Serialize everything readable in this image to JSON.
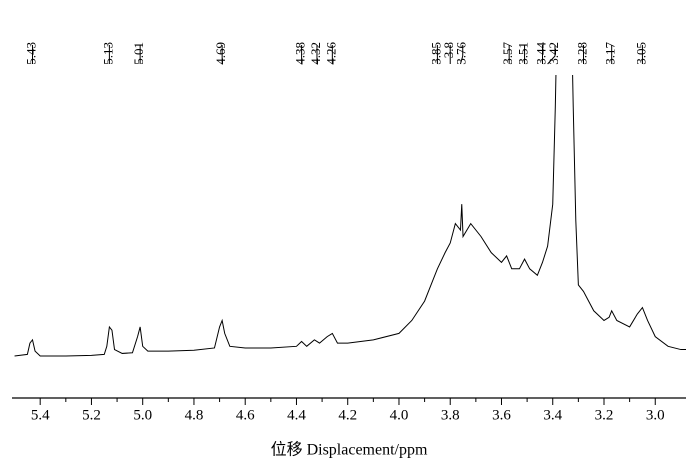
{
  "chart_data": {
    "type": "line",
    "xlabel": "位移 Displacement/ppm",
    "peaks": [
      5.43,
      5.13,
      5.01,
      4.69,
      4.38,
      4.32,
      4.26,
      3.85,
      3.8,
      3.76,
      3.57,
      3.51,
      3.44,
      3.42,
      3.28,
      3.17,
      3.05
    ],
    "xlim": [
      5.51,
      2.88
    ],
    "ylim": [
      0,
      100
    ],
    "xticks": [
      5.4,
      5.2,
      {
        "value": 5.0,
        "label": "5.0"
      },
      4.8,
      4.6,
      4.4,
      4.2,
      {
        "value": 4.0,
        "label": "4.0"
      },
      3.8,
      3.6,
      3.4,
      3.2,
      {
        "value": 3.0,
        "label": "3.0"
      }
    ],
    "color": "#000000",
    "series": [
      {
        "x": [
          5.5,
          5.45,
          5.44,
          5.43,
          5.42,
          5.4,
          5.3,
          5.2,
          5.15,
          5.14,
          5.13,
          5.12,
          5.11,
          5.08,
          5.04,
          5.02,
          5.01,
          5.0,
          4.98,
          4.9,
          4.8,
          4.72,
          4.7,
          4.69,
          4.68,
          4.66,
          4.6,
          4.5,
          4.4,
          4.38,
          4.36,
          4.33,
          4.31,
          4.28,
          4.26,
          4.24,
          4.2,
          4.1,
          4.0,
          3.95,
          3.9,
          3.87,
          3.85,
          3.82,
          3.8,
          3.78,
          3.76,
          3.755,
          3.75,
          3.72,
          3.68,
          3.64,
          3.6,
          3.58,
          3.56,
          3.53,
          3.51,
          3.49,
          3.46,
          3.44,
          3.42,
          3.4,
          3.39,
          3.38,
          3.33,
          3.32,
          3.31,
          3.3,
          3.28,
          3.26,
          3.24,
          3.2,
          3.18,
          3.17,
          3.15,
          3.1,
          3.07,
          3.05,
          3.03,
          3.0,
          2.95,
          2.9,
          2.88
        ],
        "values": [
          13,
          13.5,
          17,
          18,
          14.5,
          13,
          13,
          13.2,
          13.5,
          16,
          22,
          21,
          15,
          13.8,
          14,
          19,
          22,
          16,
          14.5,
          14.5,
          14.8,
          15.5,
          22,
          24,
          20,
          16,
          15.5,
          15.5,
          16,
          17.5,
          16,
          18,
          17,
          19,
          20,
          17,
          17,
          18,
          20,
          24,
          30,
          36,
          40,
          45,
          48,
          54,
          52,
          60,
          50,
          54,
          50,
          45,
          42,
          44,
          40,
          40,
          43,
          40,
          38,
          42,
          47,
          60,
          90,
          130,
          130,
          90,
          55,
          35,
          33,
          30,
          27,
          24,
          25,
          27,
          24,
          22,
          26,
          28,
          24,
          19,
          16,
          15,
          15
        ]
      }
    ]
  }
}
